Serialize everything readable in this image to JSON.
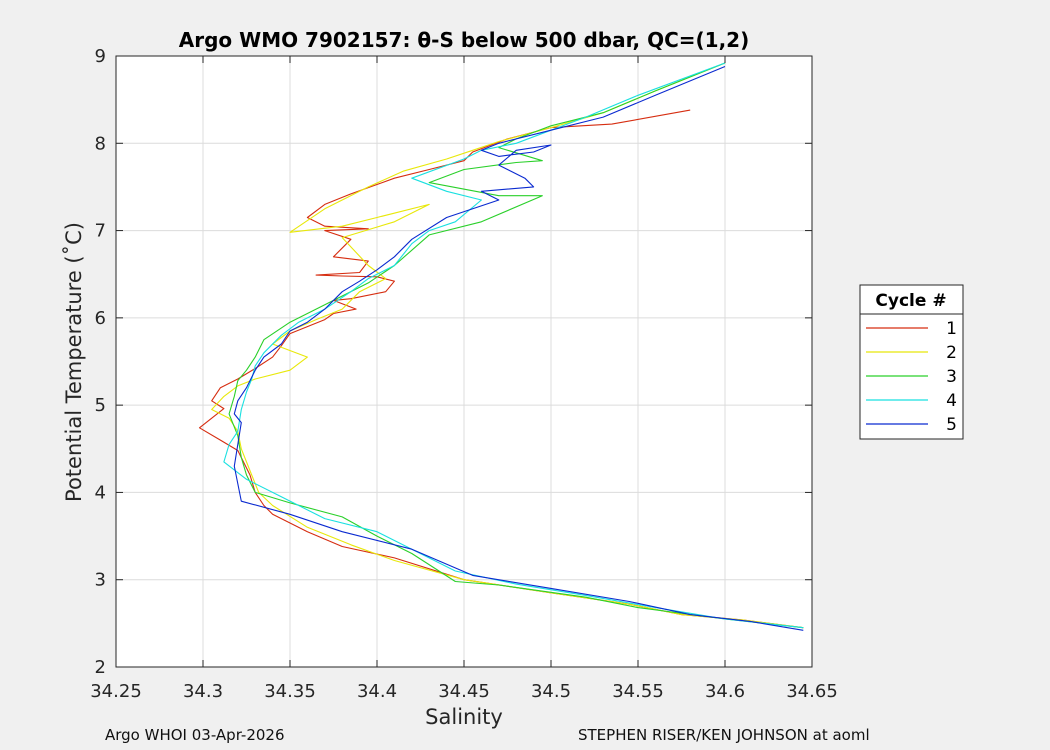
{
  "chart_data": {
    "type": "line",
    "title": "Argo WMO 7902157: θ-S below 500 dbar,  QC=(1,2)",
    "xlabel": "Salinity",
    "ylabel": "Potential Temperature (˚C)",
    "xlim": [
      34.25,
      34.65
    ],
    "ylim": [
      2,
      9
    ],
    "xticks": [
      "34.25",
      "34.3",
      "34.35",
      "34.4",
      "34.45",
      "34.5",
      "34.55",
      "34.6",
      "34.65"
    ],
    "yticks": [
      "2",
      "3",
      "4",
      "5",
      "6",
      "7",
      "8",
      "9"
    ],
    "grid": true,
    "legend": {
      "title": "Cycle #",
      "position": "right-outside"
    },
    "series": [
      {
        "name": "1",
        "color": "#d62d10",
        "points": [
          [
            34.58,
            8.38
          ],
          [
            34.535,
            8.22
          ],
          [
            34.5,
            8.18
          ],
          [
            34.475,
            8.05
          ],
          [
            34.455,
            7.9
          ],
          [
            34.45,
            7.8
          ],
          [
            34.43,
            7.7
          ],
          [
            34.41,
            7.6
          ],
          [
            34.385,
            7.42
          ],
          [
            34.37,
            7.3
          ],
          [
            34.36,
            7.15
          ],
          [
            34.37,
            7.05
          ],
          [
            34.395,
            7.02
          ],
          [
            34.37,
            7.0
          ],
          [
            34.385,
            6.9
          ],
          [
            34.375,
            6.7
          ],
          [
            34.395,
            6.65
          ],
          [
            34.39,
            6.52
          ],
          [
            34.365,
            6.49
          ],
          [
            34.38,
            6.48
          ],
          [
            34.4,
            6.47
          ],
          [
            34.41,
            6.42
          ],
          [
            34.405,
            6.3
          ],
          [
            34.385,
            6.22
          ],
          [
            34.375,
            6.2
          ],
          [
            34.388,
            6.1
          ],
          [
            34.375,
            6.05
          ],
          [
            34.37,
            5.98
          ],
          [
            34.36,
            5.9
          ],
          [
            34.35,
            5.82
          ],
          [
            34.345,
            5.68
          ],
          [
            34.34,
            5.55
          ],
          [
            34.33,
            5.42
          ],
          [
            34.32,
            5.3
          ],
          [
            34.31,
            5.2
          ],
          [
            34.305,
            5.05
          ],
          [
            34.312,
            4.96
          ],
          [
            34.298,
            4.74
          ],
          [
            34.31,
            4.6
          ],
          [
            34.32,
            4.48
          ],
          [
            34.327,
            4.2
          ],
          [
            34.33,
            4.0
          ],
          [
            34.335,
            3.85
          ],
          [
            34.34,
            3.75
          ],
          [
            34.36,
            3.55
          ],
          [
            34.38,
            3.38
          ],
          [
            34.41,
            3.25
          ],
          [
            34.45,
            3.0
          ],
          [
            34.5,
            2.85
          ],
          [
            34.545,
            2.72
          ],
          [
            34.575,
            2.6
          ],
          [
            34.61,
            2.54
          ],
          [
            34.645,
            2.45
          ]
        ]
      },
      {
        "name": "2",
        "color": "#e8e80a",
        "points": [
          [
            34.6,
            8.92
          ],
          [
            34.56,
            8.6
          ],
          [
            34.53,
            8.35
          ],
          [
            34.5,
            8.18
          ],
          [
            34.47,
            8.02
          ],
          [
            34.455,
            7.92
          ],
          [
            34.44,
            7.82
          ],
          [
            34.415,
            7.68
          ],
          [
            34.395,
            7.5
          ],
          [
            34.37,
            7.25
          ],
          [
            34.35,
            6.98
          ],
          [
            34.38,
            7.05
          ],
          [
            34.4,
            7.15
          ],
          [
            34.43,
            7.3
          ],
          [
            34.41,
            7.1
          ],
          [
            34.38,
            6.92
          ],
          [
            34.395,
            6.6
          ],
          [
            34.405,
            6.45
          ],
          [
            34.39,
            6.3
          ],
          [
            34.38,
            6.1
          ],
          [
            34.365,
            5.98
          ],
          [
            34.35,
            5.85
          ],
          [
            34.34,
            5.7
          ],
          [
            34.36,
            5.55
          ],
          [
            34.35,
            5.4
          ],
          [
            34.33,
            5.3
          ],
          [
            34.32,
            5.22
          ],
          [
            34.312,
            5.1
          ],
          [
            34.305,
            4.95
          ],
          [
            34.315,
            4.85
          ],
          [
            34.32,
            4.7
          ],
          [
            34.322,
            4.5
          ],
          [
            34.328,
            4.2
          ],
          [
            34.332,
            4.0
          ],
          [
            34.34,
            3.85
          ],
          [
            34.36,
            3.6
          ],
          [
            34.385,
            3.4
          ],
          [
            34.41,
            3.22
          ],
          [
            34.45,
            3.0
          ],
          [
            34.5,
            2.85
          ],
          [
            34.545,
            2.72
          ],
          [
            34.575,
            2.6
          ],
          [
            34.61,
            2.54
          ],
          [
            34.645,
            2.45
          ]
        ]
      },
      {
        "name": "3",
        "color": "#2ad02a",
        "points": [
          [
            34.6,
            8.92
          ],
          [
            34.56,
            8.6
          ],
          [
            34.53,
            8.35
          ],
          [
            34.5,
            8.2
          ],
          [
            34.48,
            8.05
          ],
          [
            34.47,
            7.95
          ],
          [
            34.495,
            7.8
          ],
          [
            34.48,
            7.78
          ],
          [
            34.45,
            7.7
          ],
          [
            34.43,
            7.55
          ],
          [
            34.47,
            7.4
          ],
          [
            34.495,
            7.4
          ],
          [
            34.46,
            7.1
          ],
          [
            34.43,
            6.95
          ],
          [
            34.41,
            6.6
          ],
          [
            34.395,
            6.4
          ],
          [
            34.38,
            6.25
          ],
          [
            34.365,
            6.1
          ],
          [
            34.35,
            5.95
          ],
          [
            34.335,
            5.75
          ],
          [
            34.33,
            5.55
          ],
          [
            34.325,
            5.4
          ],
          [
            34.32,
            5.28
          ],
          [
            34.318,
            5.1
          ],
          [
            34.315,
            4.9
          ],
          [
            34.32,
            4.65
          ],
          [
            34.322,
            4.4
          ],
          [
            34.325,
            4.2
          ],
          [
            34.33,
            4.0
          ],
          [
            34.35,
            3.88
          ],
          [
            34.38,
            3.72
          ],
          [
            34.4,
            3.5
          ],
          [
            34.42,
            3.3
          ],
          [
            34.445,
            2.98
          ],
          [
            34.47,
            2.94
          ],
          [
            34.52,
            2.8
          ],
          [
            34.55,
            2.68
          ],
          [
            34.6,
            2.55
          ],
          [
            34.645,
            2.45
          ]
        ]
      },
      {
        "name": "4",
        "color": "#19e0e0",
        "points": [
          [
            34.6,
            8.92
          ],
          [
            34.55,
            8.55
          ],
          [
            34.52,
            8.3
          ],
          [
            34.5,
            8.15
          ],
          [
            34.48,
            8.0
          ],
          [
            34.46,
            7.92
          ],
          [
            34.45,
            7.82
          ],
          [
            34.42,
            7.6
          ],
          [
            34.44,
            7.45
          ],
          [
            34.46,
            7.35
          ],
          [
            34.445,
            7.1
          ],
          [
            34.43,
            7.0
          ],
          [
            34.42,
            6.85
          ],
          [
            34.41,
            6.6
          ],
          [
            34.395,
            6.45
          ],
          [
            34.385,
            6.3
          ],
          [
            34.37,
            6.1
          ],
          [
            34.355,
            5.95
          ],
          [
            34.345,
            5.8
          ],
          [
            34.335,
            5.6
          ],
          [
            34.33,
            5.45
          ],
          [
            34.328,
            5.3
          ],
          [
            34.325,
            5.15
          ],
          [
            34.322,
            4.95
          ],
          [
            34.32,
            4.7
          ],
          [
            34.315,
            4.55
          ],
          [
            34.312,
            4.35
          ],
          [
            34.325,
            4.15
          ],
          [
            34.345,
            3.95
          ],
          [
            34.37,
            3.7
          ],
          [
            34.4,
            3.55
          ],
          [
            34.42,
            3.35
          ],
          [
            34.445,
            3.1
          ],
          [
            34.48,
            2.95
          ],
          [
            34.52,
            2.82
          ],
          [
            34.56,
            2.68
          ],
          [
            34.6,
            2.55
          ],
          [
            34.645,
            2.45
          ]
        ]
      },
      {
        "name": "5",
        "color": "#0a2ad0",
        "points": [
          [
            34.6,
            8.88
          ],
          [
            34.56,
            8.55
          ],
          [
            34.53,
            8.3
          ],
          [
            34.5,
            8.15
          ],
          [
            34.47,
            8.0
          ],
          [
            34.46,
            7.92
          ],
          [
            34.47,
            7.85
          ],
          [
            34.49,
            7.9
          ],
          [
            34.5,
            7.98
          ],
          [
            34.48,
            7.92
          ],
          [
            34.47,
            7.75
          ],
          [
            34.485,
            7.6
          ],
          [
            34.49,
            7.5
          ],
          [
            34.46,
            7.45
          ],
          [
            34.47,
            7.35
          ],
          [
            34.44,
            7.15
          ],
          [
            34.42,
            6.9
          ],
          [
            34.41,
            6.7
          ],
          [
            34.4,
            6.55
          ],
          [
            34.39,
            6.42
          ],
          [
            34.38,
            6.3
          ],
          [
            34.37,
            6.1
          ],
          [
            34.36,
            5.95
          ],
          [
            34.35,
            5.85
          ],
          [
            34.345,
            5.7
          ],
          [
            34.335,
            5.55
          ],
          [
            34.33,
            5.4
          ],
          [
            34.325,
            5.2
          ],
          [
            34.32,
            5.05
          ],
          [
            34.318,
            4.9
          ],
          [
            34.322,
            4.8
          ],
          [
            34.32,
            4.55
          ],
          [
            34.318,
            4.3
          ],
          [
            34.32,
            4.1
          ],
          [
            34.322,
            3.9
          ],
          [
            34.35,
            3.75
          ],
          [
            34.38,
            3.55
          ],
          [
            34.42,
            3.35
          ],
          [
            34.455,
            3.05
          ],
          [
            34.5,
            2.9
          ],
          [
            34.545,
            2.75
          ],
          [
            34.58,
            2.6
          ],
          [
            34.615,
            2.52
          ],
          [
            34.645,
            2.42
          ]
        ]
      }
    ]
  },
  "footer": {
    "left": "Argo WHOI 03-Apr-2026",
    "right": "STEPHEN RISER/KEN JOHNSON at aoml"
  }
}
